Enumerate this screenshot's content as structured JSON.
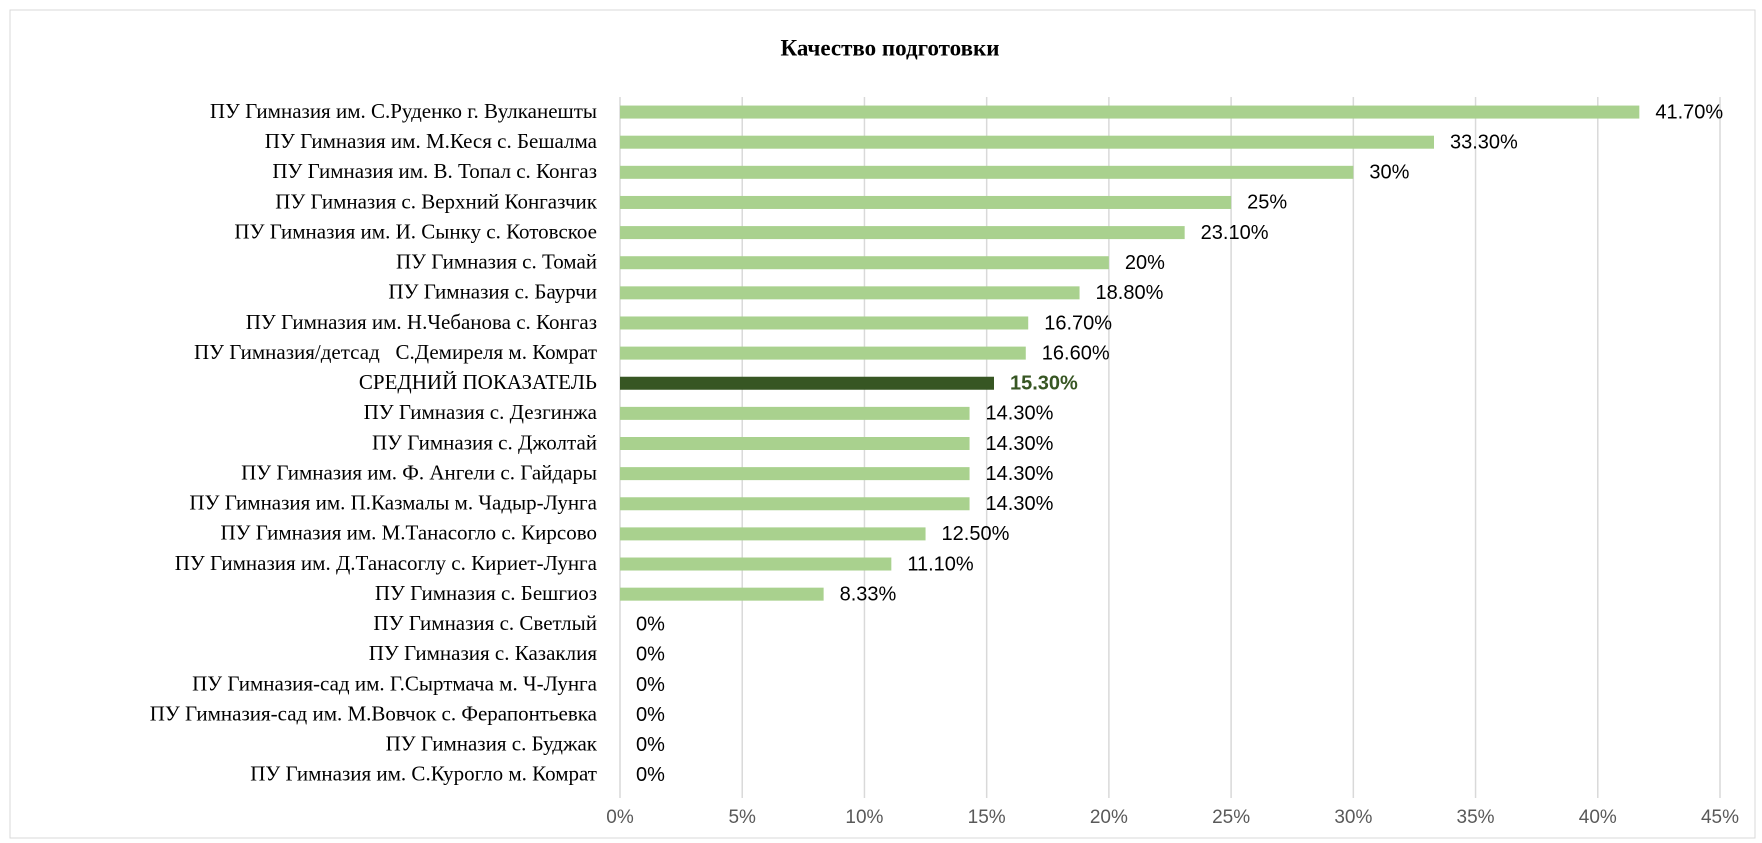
{
  "chart_data": {
    "type": "bar",
    "orientation": "horizontal",
    "title": "Качество подготовки",
    "categories": [
      "ПУ Гимназия им. С.Руденко г. Вулканешты",
      "ПУ Гимназия им. М.Кеся с. Бешалма",
      "ПУ Гимназия им. В. Топал с. Конгаз",
      "ПУ Гимназия с. Верхний Конгазчик",
      "ПУ Гимназия им. И. Сынку с. Котовское",
      "ПУ Гимназия с. Томай",
      "ПУ Гимназия с. Баурчи",
      "ПУ Гимназия им. Н.Чебанова с. Конгаз",
      "ПУ Гимназия/детсад   С.Демиреля м. Комрат",
      "СРЕДНИЙ ПОКАЗАТЕЛЬ",
      "ПУ Гимназия с. Дезгинжа",
      "ПУ Гимназия с. Джолтай",
      "ПУ Гимназия им. Ф. Ангели с. Гайдары",
      "ПУ Гимназия им. П.Казмалы м. Чадыр-Лунга",
      "ПУ Гимназия им. М.Танасогло с. Кирсово",
      "ПУ Гимназия им. Д.Танасоглу с. Кириет-Лунга",
      "ПУ Гимназия с. Бешгиоз",
      "ПУ Гимназия с. Светлый",
      "ПУ Гимназия с. Казаклия",
      "ПУ Гимназия-сад им. Г.Сыртмача м. Ч-Лунга",
      "ПУ Гимназия-сад им. М.Вовчок с. Ферапонтьевка",
      "ПУ Гимназия с. Буджак",
      "ПУ Гимназия им. С.Курогло м. Комрат"
    ],
    "values": [
      41.7,
      33.3,
      30,
      25,
      23.1,
      20,
      18.8,
      16.7,
      16.6,
      15.3,
      14.3,
      14.3,
      14.3,
      14.3,
      12.5,
      11.1,
      8.33,
      0,
      0,
      0,
      0,
      0,
      0
    ],
    "value_labels": [
      "41.70%",
      "33.30%",
      "30%",
      "25%",
      "23.10%",
      "20%",
      "18.80%",
      "16.70%",
      "16.60%",
      "15.30%",
      "14.30%",
      "14.30%",
      "14.30%",
      "14.30%",
      "12.50%",
      "11.10%",
      "8.33%",
      "0%",
      "0%",
      "0%",
      "0%",
      "0%",
      "0%"
    ],
    "color": "#a9d18e",
    "colors": [
      "#a9d18e",
      "#a9d18e",
      "#a9d18e",
      "#a9d18e",
      "#a9d18e",
      "#a9d18e",
      "#a9d18e",
      "#a9d18e",
      "#a9d18e",
      "#375623",
      "#a9d18e",
      "#a9d18e",
      "#a9d18e",
      "#a9d18e",
      "#a9d18e",
      "#a9d18e",
      "#a9d18e",
      "#a9d18e",
      "#a9d18e",
      "#a9d18e",
      "#a9d18e",
      "#a9d18e",
      "#a9d18e"
    ],
    "xlim": [
      0,
      45
    ],
    "xticks": [
      {
        "value": 0,
        "label": "0%"
      },
      {
        "value": 5,
        "label": "5%"
      },
      {
        "value": 10,
        "label": "10%"
      },
      {
        "value": 15,
        "label": "15%"
      },
      {
        "value": 20,
        "label": "20%"
      },
      {
        "value": 25,
        "label": "25%"
      },
      {
        "value": 30,
        "label": "30%"
      },
      {
        "value": 35,
        "label": "35%"
      },
      {
        "value": 40,
        "label": "40%"
      },
      {
        "value": 45,
        "label": "45%"
      }
    ],
    "grid": true
  }
}
